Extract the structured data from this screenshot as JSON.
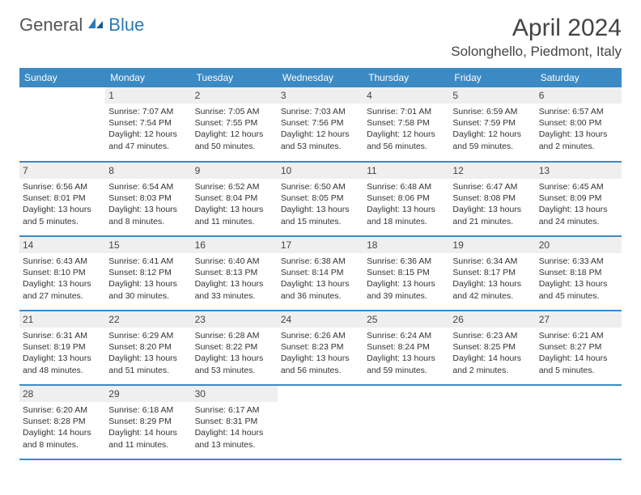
{
  "logo": {
    "general": "General",
    "blue": "Blue"
  },
  "title": "April 2024",
  "location": "Solonghello, Piedmont, Italy",
  "headers": [
    "Sunday",
    "Monday",
    "Tuesday",
    "Wednesday",
    "Thursday",
    "Friday",
    "Saturday"
  ],
  "colors": {
    "header_bg": "#3b8ac4",
    "header_text": "#ffffff",
    "daynum_bg": "#efefef",
    "row_border": "#3b8ac4",
    "body_text": "#333333",
    "title_text": "#444444",
    "logo_gray": "#555555",
    "logo_blue": "#2a7ab8"
  },
  "weeks": [
    [
      {
        "n": "",
        "sr": "",
        "ss": "",
        "dl": ""
      },
      {
        "n": "1",
        "sr": "Sunrise: 7:07 AM",
        "ss": "Sunset: 7:54 PM",
        "dl": "Daylight: 12 hours and 47 minutes."
      },
      {
        "n": "2",
        "sr": "Sunrise: 7:05 AM",
        "ss": "Sunset: 7:55 PM",
        "dl": "Daylight: 12 hours and 50 minutes."
      },
      {
        "n": "3",
        "sr": "Sunrise: 7:03 AM",
        "ss": "Sunset: 7:56 PM",
        "dl": "Daylight: 12 hours and 53 minutes."
      },
      {
        "n": "4",
        "sr": "Sunrise: 7:01 AM",
        "ss": "Sunset: 7:58 PM",
        "dl": "Daylight: 12 hours and 56 minutes."
      },
      {
        "n": "5",
        "sr": "Sunrise: 6:59 AM",
        "ss": "Sunset: 7:59 PM",
        "dl": "Daylight: 12 hours and 59 minutes."
      },
      {
        "n": "6",
        "sr": "Sunrise: 6:57 AM",
        "ss": "Sunset: 8:00 PM",
        "dl": "Daylight: 13 hours and 2 minutes."
      }
    ],
    [
      {
        "n": "7",
        "sr": "Sunrise: 6:56 AM",
        "ss": "Sunset: 8:01 PM",
        "dl": "Daylight: 13 hours and 5 minutes."
      },
      {
        "n": "8",
        "sr": "Sunrise: 6:54 AM",
        "ss": "Sunset: 8:03 PM",
        "dl": "Daylight: 13 hours and 8 minutes."
      },
      {
        "n": "9",
        "sr": "Sunrise: 6:52 AM",
        "ss": "Sunset: 8:04 PM",
        "dl": "Daylight: 13 hours and 11 minutes."
      },
      {
        "n": "10",
        "sr": "Sunrise: 6:50 AM",
        "ss": "Sunset: 8:05 PM",
        "dl": "Daylight: 13 hours and 15 minutes."
      },
      {
        "n": "11",
        "sr": "Sunrise: 6:48 AM",
        "ss": "Sunset: 8:06 PM",
        "dl": "Daylight: 13 hours and 18 minutes."
      },
      {
        "n": "12",
        "sr": "Sunrise: 6:47 AM",
        "ss": "Sunset: 8:08 PM",
        "dl": "Daylight: 13 hours and 21 minutes."
      },
      {
        "n": "13",
        "sr": "Sunrise: 6:45 AM",
        "ss": "Sunset: 8:09 PM",
        "dl": "Daylight: 13 hours and 24 minutes."
      }
    ],
    [
      {
        "n": "14",
        "sr": "Sunrise: 6:43 AM",
        "ss": "Sunset: 8:10 PM",
        "dl": "Daylight: 13 hours and 27 minutes."
      },
      {
        "n": "15",
        "sr": "Sunrise: 6:41 AM",
        "ss": "Sunset: 8:12 PM",
        "dl": "Daylight: 13 hours and 30 minutes."
      },
      {
        "n": "16",
        "sr": "Sunrise: 6:40 AM",
        "ss": "Sunset: 8:13 PM",
        "dl": "Daylight: 13 hours and 33 minutes."
      },
      {
        "n": "17",
        "sr": "Sunrise: 6:38 AM",
        "ss": "Sunset: 8:14 PM",
        "dl": "Daylight: 13 hours and 36 minutes."
      },
      {
        "n": "18",
        "sr": "Sunrise: 6:36 AM",
        "ss": "Sunset: 8:15 PM",
        "dl": "Daylight: 13 hours and 39 minutes."
      },
      {
        "n": "19",
        "sr": "Sunrise: 6:34 AM",
        "ss": "Sunset: 8:17 PM",
        "dl": "Daylight: 13 hours and 42 minutes."
      },
      {
        "n": "20",
        "sr": "Sunrise: 6:33 AM",
        "ss": "Sunset: 8:18 PM",
        "dl": "Daylight: 13 hours and 45 minutes."
      }
    ],
    [
      {
        "n": "21",
        "sr": "Sunrise: 6:31 AM",
        "ss": "Sunset: 8:19 PM",
        "dl": "Daylight: 13 hours and 48 minutes."
      },
      {
        "n": "22",
        "sr": "Sunrise: 6:29 AM",
        "ss": "Sunset: 8:20 PM",
        "dl": "Daylight: 13 hours and 51 minutes."
      },
      {
        "n": "23",
        "sr": "Sunrise: 6:28 AM",
        "ss": "Sunset: 8:22 PM",
        "dl": "Daylight: 13 hours and 53 minutes."
      },
      {
        "n": "24",
        "sr": "Sunrise: 6:26 AM",
        "ss": "Sunset: 8:23 PM",
        "dl": "Daylight: 13 hours and 56 minutes."
      },
      {
        "n": "25",
        "sr": "Sunrise: 6:24 AM",
        "ss": "Sunset: 8:24 PM",
        "dl": "Daylight: 13 hours and 59 minutes."
      },
      {
        "n": "26",
        "sr": "Sunrise: 6:23 AM",
        "ss": "Sunset: 8:25 PM",
        "dl": "Daylight: 14 hours and 2 minutes."
      },
      {
        "n": "27",
        "sr": "Sunrise: 6:21 AM",
        "ss": "Sunset: 8:27 PM",
        "dl": "Daylight: 14 hours and 5 minutes."
      }
    ],
    [
      {
        "n": "28",
        "sr": "Sunrise: 6:20 AM",
        "ss": "Sunset: 8:28 PM",
        "dl": "Daylight: 14 hours and 8 minutes."
      },
      {
        "n": "29",
        "sr": "Sunrise: 6:18 AM",
        "ss": "Sunset: 8:29 PM",
        "dl": "Daylight: 14 hours and 11 minutes."
      },
      {
        "n": "30",
        "sr": "Sunrise: 6:17 AM",
        "ss": "Sunset: 8:31 PM",
        "dl": "Daylight: 14 hours and 13 minutes."
      },
      {
        "n": "",
        "sr": "",
        "ss": "",
        "dl": ""
      },
      {
        "n": "",
        "sr": "",
        "ss": "",
        "dl": ""
      },
      {
        "n": "",
        "sr": "",
        "ss": "",
        "dl": ""
      },
      {
        "n": "",
        "sr": "",
        "ss": "",
        "dl": ""
      }
    ]
  ]
}
